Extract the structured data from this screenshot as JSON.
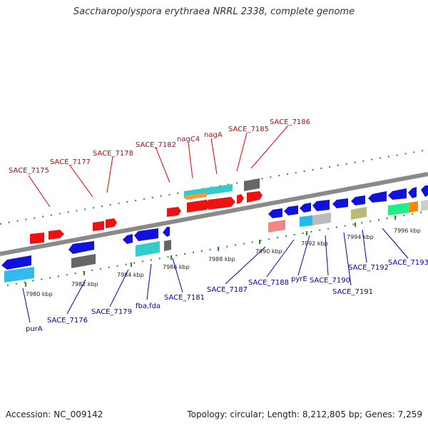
{
  "title": "Saccharopolyspora erythraea NRRL 2338, complete genome",
  "footer": {
    "accession": "Accession: NC_009142",
    "summary": "Topology: circular; Length: 8,212,805 bp; Genes: 7,259"
  },
  "colors": {
    "forward_label": "#cc0000",
    "reverse_label": "#0000bb",
    "backbone": "#888888",
    "tick": "#228822"
  },
  "ticks": [
    "7980 kbp",
    "7982 kbp",
    "7984 kbp",
    "7986 kbp",
    "7988 kbp",
    "7990 kbp",
    "7992 kbp",
    "7994 kbp",
    "7996 kbp"
  ],
  "forward_labels": [
    "SACE_7175",
    "SACE_7177",
    "SACE_7178",
    "SACE_7182",
    "nagC4",
    "nagA",
    "SACE_7185",
    "SACE_7186"
  ],
  "reverse_labels": [
    "purA",
    "SACE_7176",
    "SACE_7179",
    "fba,fda",
    "SACE_7181",
    "SACE_7187",
    "SACE_7188",
    "pyrE",
    "SACE_7190",
    "SACE_7191",
    "SACE_7192",
    "SACE_7193"
  ]
}
